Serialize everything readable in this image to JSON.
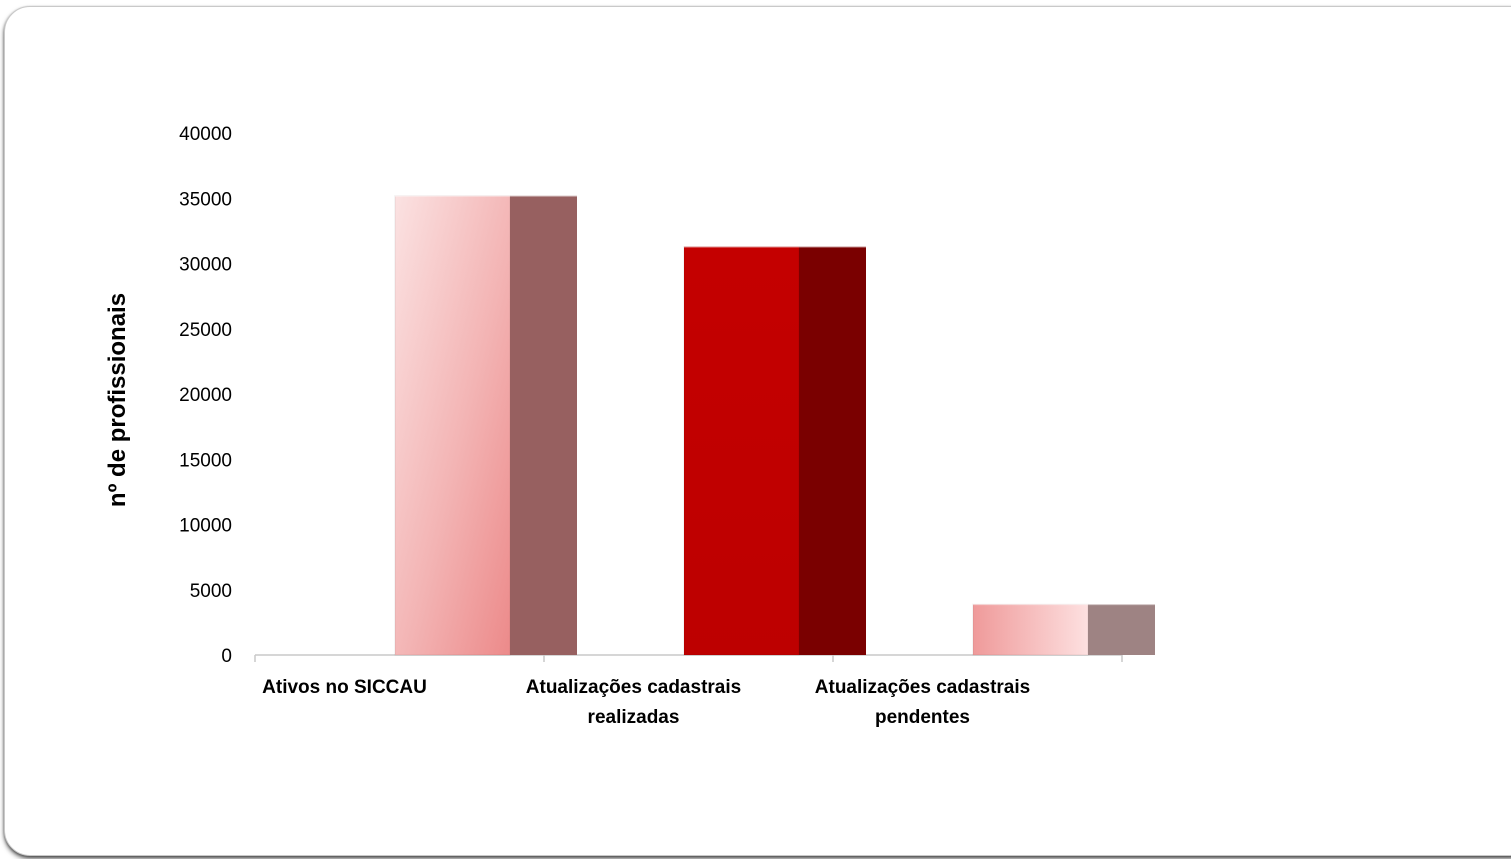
{
  "chart_data": {
    "type": "bar",
    "style": "3d-column",
    "title": "",
    "xlabel": "",
    "ylabel": "nº de profissionais",
    "ylim": [
      0,
      40000
    ],
    "yticks": [
      0,
      5000,
      10000,
      15000,
      20000,
      25000,
      30000,
      35000,
      40000
    ],
    "grid": false,
    "legend": "none",
    "categories": [
      [
        "Ativos no SICCAU"
      ],
      [
        "Atualizações cadastrais",
        "realizadas"
      ],
      [
        "Atualizações cadastrais",
        "pendentes"
      ]
    ],
    "values": [
      35200,
      31300,
      3900
    ],
    "colors": {
      "bar_front": [
        "#f0a0a0",
        "#c00000",
        "#f4b8b8"
      ],
      "bar_side": [
        "#976060",
        "#7a0000",
        "#9e8383"
      ]
    }
  }
}
